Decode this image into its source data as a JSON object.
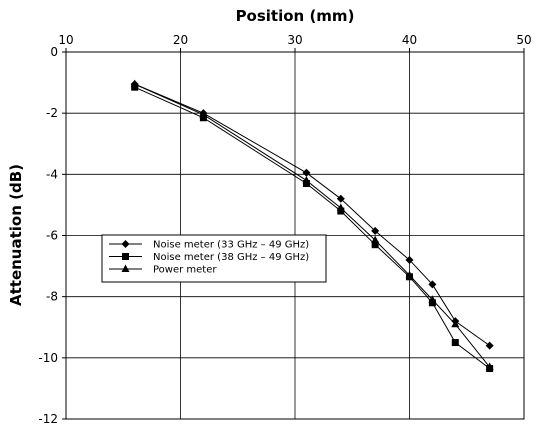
{
  "chart_data": {
    "type": "line",
    "xlabel": "Position (mm)",
    "ylabel": "Attenuation (dB)",
    "xlim": [
      10,
      50
    ],
    "ylim": [
      -12,
      0
    ],
    "x_ticks": [
      "10",
      "20",
      "30",
      "40",
      "50"
    ],
    "y_ticks": [
      "0",
      "-2",
      "-4",
      "-6",
      "-8",
      "-10",
      "-12"
    ],
    "x_axis_position": "top",
    "grid": true,
    "legend_position": "center-left",
    "series": [
      {
        "name": "Noise meter (33 GHz – 49 GHz)",
        "marker": "diamond",
        "x": [
          16,
          22,
          31,
          34,
          37,
          40,
          42,
          44,
          47
        ],
        "y": [
          -1.05,
          -2.0,
          -3.95,
          -4.8,
          -5.85,
          -6.8,
          -7.6,
          -8.8,
          -9.6
        ]
      },
      {
        "name": "Noise meter (38 GHz – 49 GHz)",
        "marker": "square",
        "x": [
          16,
          22,
          31,
          34,
          37,
          40,
          42,
          44,
          47
        ],
        "y": [
          -1.15,
          -2.15,
          -4.3,
          -5.2,
          -6.3,
          -7.35,
          -8.2,
          -9.5,
          -10.35
        ]
      },
      {
        "name": "Power meter",
        "marker": "triangle",
        "x": [
          16,
          22,
          31,
          34,
          37,
          40,
          42,
          44,
          47
        ],
        "y": [
          -1.05,
          -2.05,
          -4.2,
          -5.1,
          -6.15,
          -7.3,
          -8.1,
          -8.9,
          -10.3
        ]
      }
    ]
  }
}
